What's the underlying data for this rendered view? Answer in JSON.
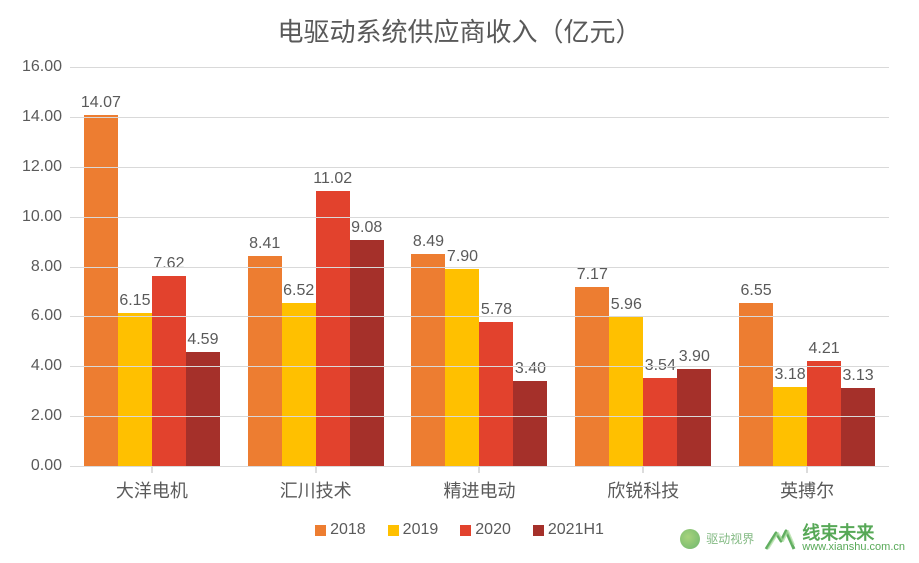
{
  "chart": {
    "type": "bar",
    "title": "电驱动系统供应商收入（亿元）",
    "title_fontsize": 26,
    "title_color": "#595959",
    "background_color": "#ffffff",
    "grid_color": "#d9d9d9",
    "axis_color": "#b8b8b8",
    "text_color": "#595959",
    "tick_fontsize": 16,
    "data_label_fontsize": 16,
    "category_fontsize": 18,
    "legend_fontsize": 16,
    "y_axis": {
      "min": 0,
      "max": 16,
      "step": 2,
      "ticks": [
        "0.00",
        "2.00",
        "4.00",
        "6.00",
        "8.00",
        "10.00",
        "12.00",
        "14.00",
        "16.00"
      ]
    },
    "categories": [
      "大洋电机",
      "汇川技术",
      "精进电动",
      "欣锐科技",
      "英搏尔"
    ],
    "series": [
      {
        "name": "2018",
        "color": "#ed7d31",
        "values": [
          14.07,
          8.41,
          8.49,
          7.17,
          6.55
        ]
      },
      {
        "name": "2019",
        "color": "#ffc000",
        "values": [
          6.15,
          6.52,
          7.9,
          5.96,
          3.18
        ]
      },
      {
        "name": "2020",
        "color": "#e2422d",
        "values": [
          7.62,
          11.02,
          5.78,
          3.54,
          4.21
        ]
      },
      {
        "name": "2021H1",
        "color": "#a5302a",
        "values": [
          4.59,
          9.08,
          3.4,
          3.9,
          3.13
        ]
      }
    ],
    "bar_width": 0.85
  },
  "watermark": {
    "brand_cn": "线束未来",
    "brand_url": "www.xianshu.com.cn",
    "small_label": "驱动视界",
    "logo_color": "#46a046"
  }
}
